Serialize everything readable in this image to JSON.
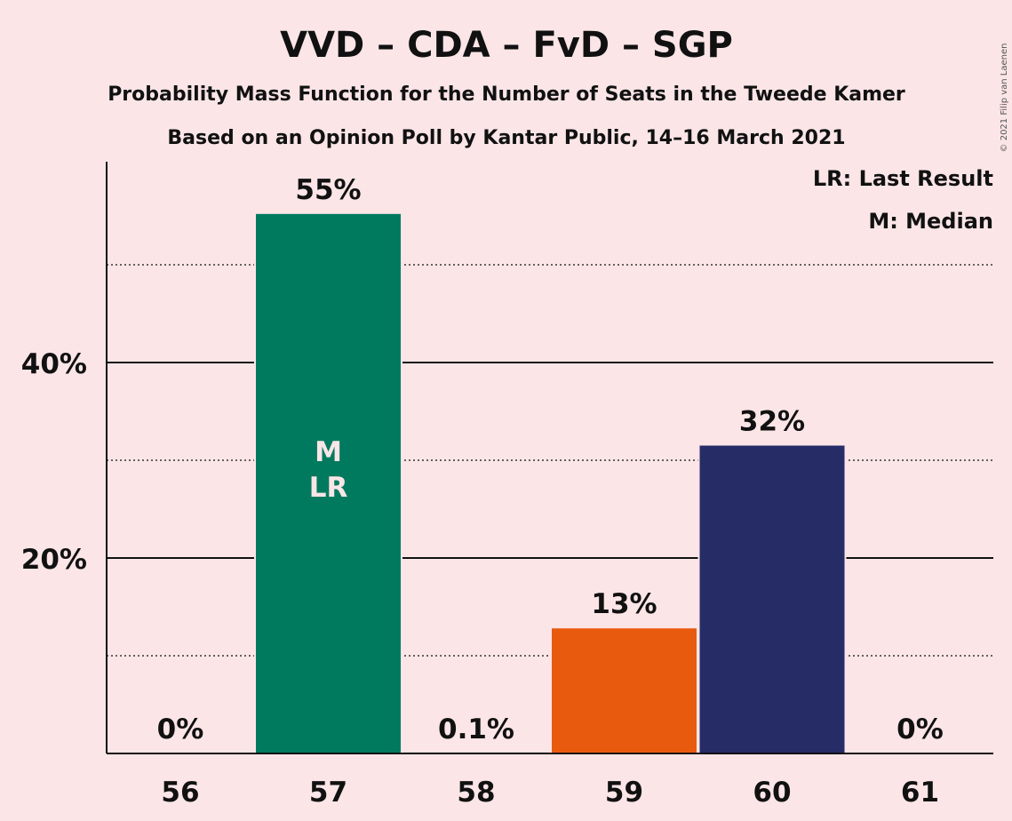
{
  "chart_data": {
    "type": "bar",
    "title": "VVD – CDA – FvD – SGP",
    "subtitle_1": "Probability Mass Function for the Number of Seats in the Tweede Kamer",
    "subtitle_2": "Based on an Opinion Poll by Kantar Public, 14–16 March 2021",
    "categories": [
      "56",
      "57",
      "58",
      "59",
      "60",
      "61"
    ],
    "values": [
      0,
      55.2,
      0.1,
      12.8,
      31.5,
      0
    ],
    "value_labels": [
      "0%",
      "55%",
      "0.1%",
      "13%",
      "32%",
      "0%"
    ],
    "bar_colors": [
      "#007A5E",
      "#007A5E",
      "#007A5E",
      "#E85B0F",
      "#262C66",
      "#262C66"
    ],
    "y_ticks": [
      {
        "value": 20,
        "label": "20%"
      },
      {
        "value": 40,
        "label": "40%"
      }
    ],
    "y_minor_ticks": [
      10,
      30,
      50
    ],
    "ylim": [
      0,
      60
    ],
    "median_category": "57",
    "last_result_category": "57",
    "markers": {
      "median": "M",
      "last_result": "LR"
    },
    "legend": {
      "last_result": "LR: Last Result",
      "median": "M: Median",
      "position": "top-right"
    },
    "copyright": "© 2021 Filip van Laenen"
  }
}
